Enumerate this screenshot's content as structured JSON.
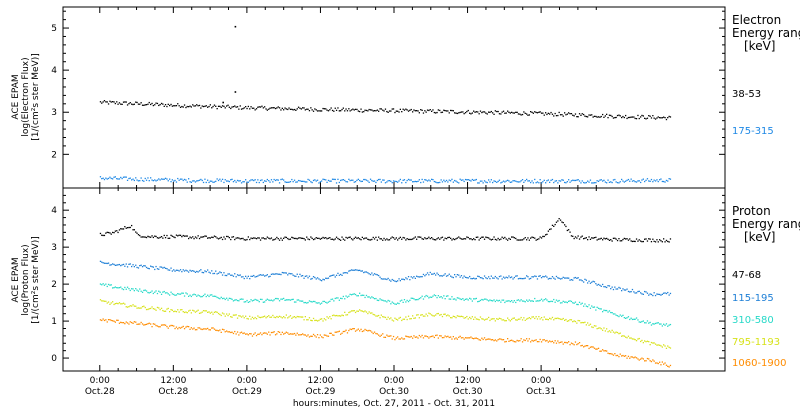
{
  "chart_data": [
    {
      "type": "scatter",
      "panel": "electron",
      "ylabel": [
        "ACE EPAM",
        "log(Electron Flux)",
        "[1/(cm²s ster MeV)]"
      ],
      "ylim": [
        1.2,
        5.5
      ],
      "yticks": [
        "2",
        "3",
        "4",
        "5"
      ],
      "legend": {
        "title": [
          "Electron",
          "Energy ranges",
          "[keV]"
        ],
        "entries": [
          "38-53",
          "175-315"
        ]
      },
      "series": [
        {
          "label_ref": "38-53",
          "color": "#000000",
          "x": [
            0,
            12,
            24,
            36,
            48,
            60,
            72,
            84,
            93
          ],
          "values": [
            3.25,
            3.18,
            3.12,
            3.08,
            3.05,
            3.02,
            2.98,
            2.92,
            2.88
          ],
          "spikes": [
            [
              22,
              3.5
            ],
            [
              22,
              5.05
            ],
            [
              20,
              3.25
            ]
          ]
        },
        {
          "label_ref": "175-315",
          "color": "#1e88e5",
          "x": [
            0,
            12,
            24,
            36,
            48,
            60,
            72,
            84,
            93
          ],
          "values": [
            1.45,
            1.4,
            1.38,
            1.38,
            1.38,
            1.38,
            1.38,
            1.38,
            1.4
          ],
          "spikes": []
        }
      ]
    },
    {
      "type": "scatter",
      "panel": "proton",
      "ylabel": [
        "ACE EPAM",
        "log(Proton Flux)",
        "[1/(cm²s ster MeV)]"
      ],
      "ylim": [
        -0.35,
        4.6
      ],
      "yticks": [
        "0",
        "1",
        "2",
        "3",
        "4"
      ],
      "legend": {
        "title": [
          "Proton",
          "Energy ranges",
          "[keV]"
        ],
        "entries": [
          "47-68",
          "115-195",
          "310-580",
          "795-1193",
          "1060-1900"
        ]
      },
      "series": [
        {
          "label_ref": "47-68",
          "color": "#000000",
          "x": [
            0,
            2,
            5,
            6,
            8,
            12,
            24,
            48,
            72,
            75,
            77,
            80,
            84,
            93
          ],
          "values": [
            3.35,
            3.4,
            3.6,
            3.35,
            3.3,
            3.3,
            3.25,
            3.25,
            3.25,
            3.8,
            3.3,
            3.25,
            3.22,
            3.2
          ]
        },
        {
          "label_ref": "115-195",
          "color": "#1e7fd6",
          "x": [
            0,
            6,
            12,
            18,
            24,
            30,
            36,
            42,
            48,
            54,
            60,
            66,
            72,
            78,
            84,
            90,
            93
          ],
          "values": [
            2.6,
            2.5,
            2.4,
            2.35,
            2.2,
            2.3,
            2.15,
            2.4,
            2.1,
            2.3,
            2.2,
            2.2,
            2.2,
            2.15,
            1.9,
            1.75,
            1.75
          ]
        },
        {
          "label_ref": "310-580",
          "color": "#26d9c8",
          "x": [
            0,
            6,
            12,
            18,
            24,
            30,
            36,
            42,
            48,
            54,
            60,
            66,
            72,
            78,
            84,
            90,
            93
          ],
          "values": [
            2.0,
            1.85,
            1.75,
            1.7,
            1.55,
            1.6,
            1.5,
            1.75,
            1.5,
            1.7,
            1.6,
            1.55,
            1.6,
            1.5,
            1.2,
            0.95,
            0.9
          ]
        },
        {
          "label_ref": "795-1193",
          "color": "#d7e21b",
          "x": [
            0,
            6,
            12,
            18,
            24,
            30,
            36,
            42,
            48,
            54,
            60,
            66,
            72,
            78,
            84,
            90,
            93
          ],
          "values": [
            1.55,
            1.4,
            1.3,
            1.25,
            1.1,
            1.15,
            1.05,
            1.3,
            1.05,
            1.2,
            1.1,
            1.05,
            1.1,
            1.0,
            0.7,
            0.4,
            0.3
          ]
        },
        {
          "label_ref": "1060-1900",
          "color": "#ff8c00",
          "x": [
            0,
            6,
            12,
            18,
            24,
            30,
            36,
            42,
            48,
            54,
            60,
            66,
            72,
            78,
            84,
            90,
            93
          ],
          "values": [
            1.05,
            0.95,
            0.85,
            0.8,
            0.65,
            0.7,
            0.6,
            0.8,
            0.55,
            0.6,
            0.55,
            0.5,
            0.5,
            0.4,
            0.1,
            -0.05,
            -0.2
          ]
        }
      ]
    }
  ],
  "xaxis": {
    "xlim": [
      -6,
      102
    ],
    "ticks": [
      {
        "x": 0,
        "line1": "0:00",
        "line2": "Oct.28"
      },
      {
        "x": 12,
        "line1": "12:00",
        "line2": "Oct.28"
      },
      {
        "x": 24,
        "line1": "0:00",
        "line2": "Oct.29"
      },
      {
        "x": 36,
        "line1": "12:00",
        "line2": "Oct.29"
      },
      {
        "x": 48,
        "line1": "0:00",
        "line2": "Oct.30"
      },
      {
        "x": 60,
        "line1": "12:00",
        "line2": "Oct.30"
      },
      {
        "x": 72,
        "line1": "0:00",
        "line2": "Oct.31"
      }
    ],
    "xlabel": "hours:minutes, Oct. 27, 2011 - Oct. 31, 2011"
  }
}
